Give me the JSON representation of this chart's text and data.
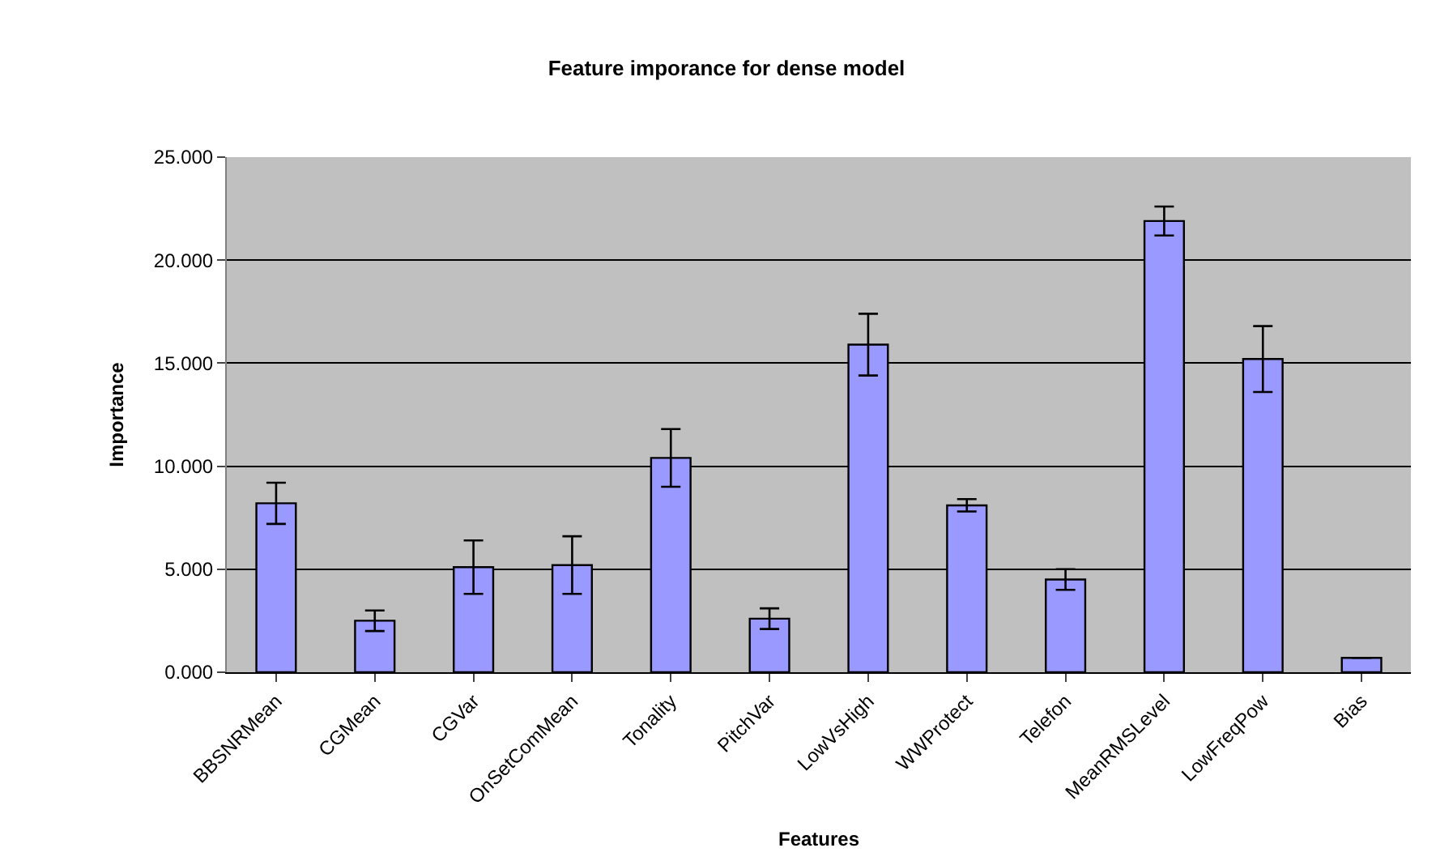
{
  "chart_data": {
    "type": "bar",
    "title": "Feature imporance for dense model",
    "xlabel": "Features",
    "ylabel": "Importance",
    "categories": [
      "BBSNRMean",
      "CGMean",
      "CGVar",
      "OnSetComMean",
      "Tonality",
      "PitchVar",
      "LowVsHigh",
      "WWProtect",
      "Telefon",
      "MeanRMSLevel",
      "LowFreqPow",
      "Bias"
    ],
    "values": [
      8.2,
      2.5,
      5.1,
      5.2,
      10.4,
      2.6,
      15.9,
      8.1,
      4.5,
      21.9,
      15.2,
      0.7
    ],
    "errors": [
      1.0,
      0.5,
      1.3,
      1.4,
      1.4,
      0.5,
      1.5,
      0.3,
      0.5,
      0.7,
      1.6,
      null
    ],
    "color": "#9999ff",
    "ylim": [
      0,
      25
    ],
    "yticks": [
      {
        "value": 0,
        "label": "0.000"
      },
      {
        "value": 5,
        "label": "5.000"
      },
      {
        "value": 10,
        "label": "10.000"
      },
      {
        "value": 15,
        "label": "15.000"
      },
      {
        "value": 20,
        "label": "20.000"
      },
      {
        "value": 25,
        "label": "25.000"
      }
    ],
    "grid": "y"
  }
}
